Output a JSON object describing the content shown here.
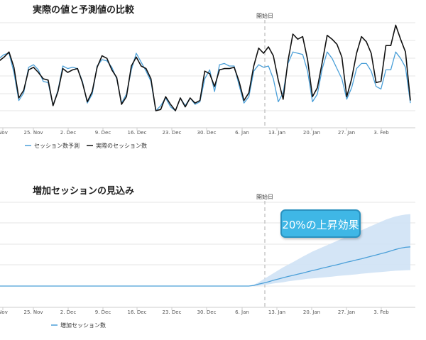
{
  "chart_data": [
    {
      "type": "line",
      "title": "実際の値と予測値の比較",
      "event_label": "開始日",
      "x_ticks": [
        "Nov",
        "25. Nov",
        "2. Dec",
        "9. Dec",
        "16. Dec",
        "23. Dec",
        "30. Dec",
        "6. Jan",
        "13. Jan",
        "20. Jan",
        "27. Jan",
        "3. Feb"
      ],
      "legend": [
        "セッション数予測",
        "実際のセッション数"
      ],
      "ylim": [
        0,
        7
      ],
      "grid": true,
      "colors": {
        "forecast": "#4a9fd8",
        "actual": "#111111"
      },
      "series": [
        {
          "name": "セッション数予測",
          "values": [
            4.6,
            4.1,
            4.4,
            4.5,
            3.0,
            0.8,
            1.4,
            3.4,
            3.6,
            3.2,
            2.3,
            2.2,
            0.4,
            1.6,
            3.5,
            3.3,
            3.4,
            3.3,
            2.3,
            0.6,
            1.3,
            3.5,
            4.0,
            3.9,
            3.4,
            2.5,
            0.6,
            1.3,
            3.2,
            4.5,
            3.8,
            3.1,
            2.3,
            0.0,
            0.4,
            1.0,
            0.3,
            0.0,
            1.0,
            0.4,
            1.0,
            0.5,
            0.7,
            2.5,
            3.2,
            1.5,
            3.6,
            3.7,
            3.5,
            3.5,
            2.0,
            0.6,
            1.1,
            3.1,
            3.6,
            3.4,
            3.5,
            2.5,
            0.7,
            1.4,
            3.7,
            4.6,
            4.5,
            4.4,
            3.1,
            0.7,
            1.3,
            3.3,
            4.6,
            4.1,
            3.3,
            2.5,
            0.9,
            1.8,
            3.3,
            3.7,
            3.7,
            3.1,
            1.9,
            1.7,
            3.2,
            3.2,
            4.6,
            4.1,
            3.4,
            0.6
          ]
        },
        {
          "name": "実際のセッション数",
          "values": [
            4.4,
            3.9,
            4.2,
            4.6,
            3.4,
            1.0,
            1.6,
            3.2,
            3.4,
            3.0,
            2.5,
            2.4,
            0.4,
            1.5,
            3.3,
            3.0,
            3.2,
            3.3,
            2.2,
            0.7,
            1.5,
            3.4,
            4.3,
            4.1,
            3.2,
            2.6,
            0.5,
            1.1,
            3.5,
            4.2,
            3.5,
            3.3,
            2.5,
            0.0,
            0.1,
            1.1,
            0.5,
            0.0,
            1.0,
            0.3,
            1.0,
            0.6,
            0.8,
            3.1,
            2.9,
            1.9,
            3.2,
            3.3,
            3.3,
            3.4,
            2.3,
            0.8,
            1.4,
            3.5,
            4.9,
            4.5,
            5.0,
            4.3,
            2.4,
            0.9,
            3.9,
            6.0,
            5.6,
            5.8,
            4.0,
            1.1,
            1.8,
            3.8,
            5.9,
            5.6,
            5.2,
            4.2,
            1.1,
            2.5,
            4.5,
            5.8,
            5.4,
            4.5,
            2.2,
            2.3,
            5.1,
            5.1,
            6.7,
            5.6,
            4.6,
            0.8
          ]
        }
      ]
    },
    {
      "type": "area",
      "title": "増加セッションの見込み",
      "event_label": "開始日",
      "annotation": "20%の上昇効果",
      "x_ticks": [
        "Nov",
        "25. Nov",
        "2. Dec",
        "9. Dec",
        "16. Dec",
        "23. Dec",
        "30. Dec",
        "6. Jan",
        "13. Jan",
        "20. Jan",
        "27. Jan",
        "3. Feb"
      ],
      "legend": [
        "増加セッション数"
      ],
      "ylim": [
        -1,
        4
      ],
      "grid": true,
      "colors": {
        "line": "#4a9fd8",
        "band": "#cfe2f5"
      },
      "series": [
        {
          "name": "増加セッション数",
          "values": [
            0,
            0,
            0,
            0,
            0,
            0,
            0,
            0,
            0,
            0,
            0,
            0,
            0,
            0,
            0,
            0,
            0,
            0,
            0,
            0,
            0,
            0,
            0,
            0,
            0,
            0,
            0,
            0,
            0,
            0,
            0,
            0,
            0,
            0,
            0,
            0,
            0,
            0,
            0,
            0,
            0,
            0,
            0,
            0,
            0,
            0,
            0,
            0,
            0,
            0,
            0,
            0,
            0,
            0.03,
            0.09,
            0.14,
            0.2,
            0.27,
            0.33,
            0.39,
            0.45,
            0.5,
            0.56,
            0.61,
            0.67,
            0.73,
            0.78,
            0.84,
            0.89,
            0.95,
            1.0,
            1.06,
            1.12,
            1.17,
            1.23,
            1.28,
            1.34,
            1.4,
            1.46,
            1.52,
            1.58,
            1.65,
            1.72,
            1.78,
            1.82,
            1.84
          ],
          "lower": [
            0,
            0,
            0,
            0,
            0,
            0,
            0,
            0,
            0,
            0,
            0,
            0,
            0,
            0,
            0,
            0,
            0,
            0,
            0,
            0,
            0,
            0,
            0,
            0,
            0,
            0,
            0,
            0,
            0,
            0,
            0,
            0,
            0,
            0,
            0,
            0,
            0,
            0,
            0,
            0,
            0,
            0,
            0,
            0,
            0,
            0,
            0,
            0,
            0,
            0,
            0,
            0,
            0,
            0,
            0.02,
            0.05,
            0.08,
            0.12,
            0.15,
            0.18,
            0.22,
            0.25,
            0.28,
            0.31,
            0.34,
            0.36,
            0.38,
            0.4,
            0.42,
            0.44,
            0.47,
            0.49,
            0.51,
            0.53,
            0.55,
            0.58,
            0.6,
            0.62,
            0.64,
            0.66,
            0.68,
            0.7,
            0.72,
            0.73,
            0.74,
            0.75
          ],
          "upper": [
            0,
            0,
            0,
            0,
            0,
            0,
            0,
            0,
            0,
            0,
            0,
            0,
            0,
            0,
            0,
            0,
            0,
            0,
            0,
            0,
            0,
            0,
            0,
            0,
            0,
            0,
            0,
            0,
            0,
            0,
            0,
            0,
            0,
            0,
            0,
            0,
            0,
            0,
            0,
            0,
            0,
            0,
            0,
            0,
            0,
            0,
            0,
            0,
            0,
            0,
            0,
            0,
            0,
            0.06,
            0.18,
            0.32,
            0.46,
            0.6,
            0.74,
            0.88,
            1.0,
            1.12,
            1.25,
            1.38,
            1.5,
            1.62,
            1.72,
            1.82,
            1.92,
            2.02,
            2.12,
            2.22,
            2.32,
            2.42,
            2.52,
            2.62,
            2.72,
            2.82,
            2.92,
            3.02,
            3.12,
            3.2,
            3.27,
            3.32,
            3.36,
            3.38
          ]
        }
      ]
    }
  ]
}
